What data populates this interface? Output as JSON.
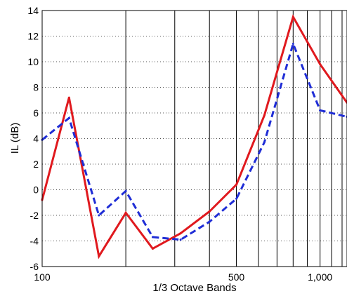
{
  "chart_data": {
    "type": "line",
    "xlabel": "1/3 Octave Bands",
    "ylabel": "IL (dB)",
    "x_scale": "log",
    "xlim": [
      100,
      1250
    ],
    "ylim": [
      -6,
      14
    ],
    "y_ticks": [
      -6,
      -4,
      -2,
      0,
      2,
      4,
      6,
      8,
      10,
      12,
      14
    ],
    "x_tick_labels": [
      {
        "value": 100,
        "label": "100"
      },
      {
        "value": 500,
        "label": "500"
      },
      {
        "value": 1000,
        "label": "1,000"
      }
    ],
    "x_gridlines": [
      200,
      300,
      400,
      500,
      600,
      700,
      800,
      900,
      1000,
      1100,
      1200
    ],
    "grid": {
      "horizontal": "dotted",
      "vertical": "solid"
    },
    "series": [
      {
        "color": "#e0191e",
        "style": "solid",
        "x": [
          100,
          125,
          160,
          200,
          250,
          315,
          400,
          500,
          630,
          800,
          1000,
          1250
        ],
        "y": [
          -0.8,
          7.2,
          -5.2,
          -1.8,
          -4.6,
          -3.4,
          -1.7,
          0.4,
          5.8,
          13.5,
          9.8,
          6.8
        ]
      },
      {
        "color": "#1f2dd6",
        "style": "dashed",
        "x": [
          100,
          125,
          160,
          200,
          250,
          315,
          400,
          500,
          630,
          800,
          1000,
          1250
        ],
        "y": [
          3.9,
          5.6,
          -2.0,
          -0.1,
          -3.7,
          -3.9,
          -2.5,
          -0.7,
          3.7,
          11.4,
          6.2,
          5.7
        ]
      }
    ]
  }
}
